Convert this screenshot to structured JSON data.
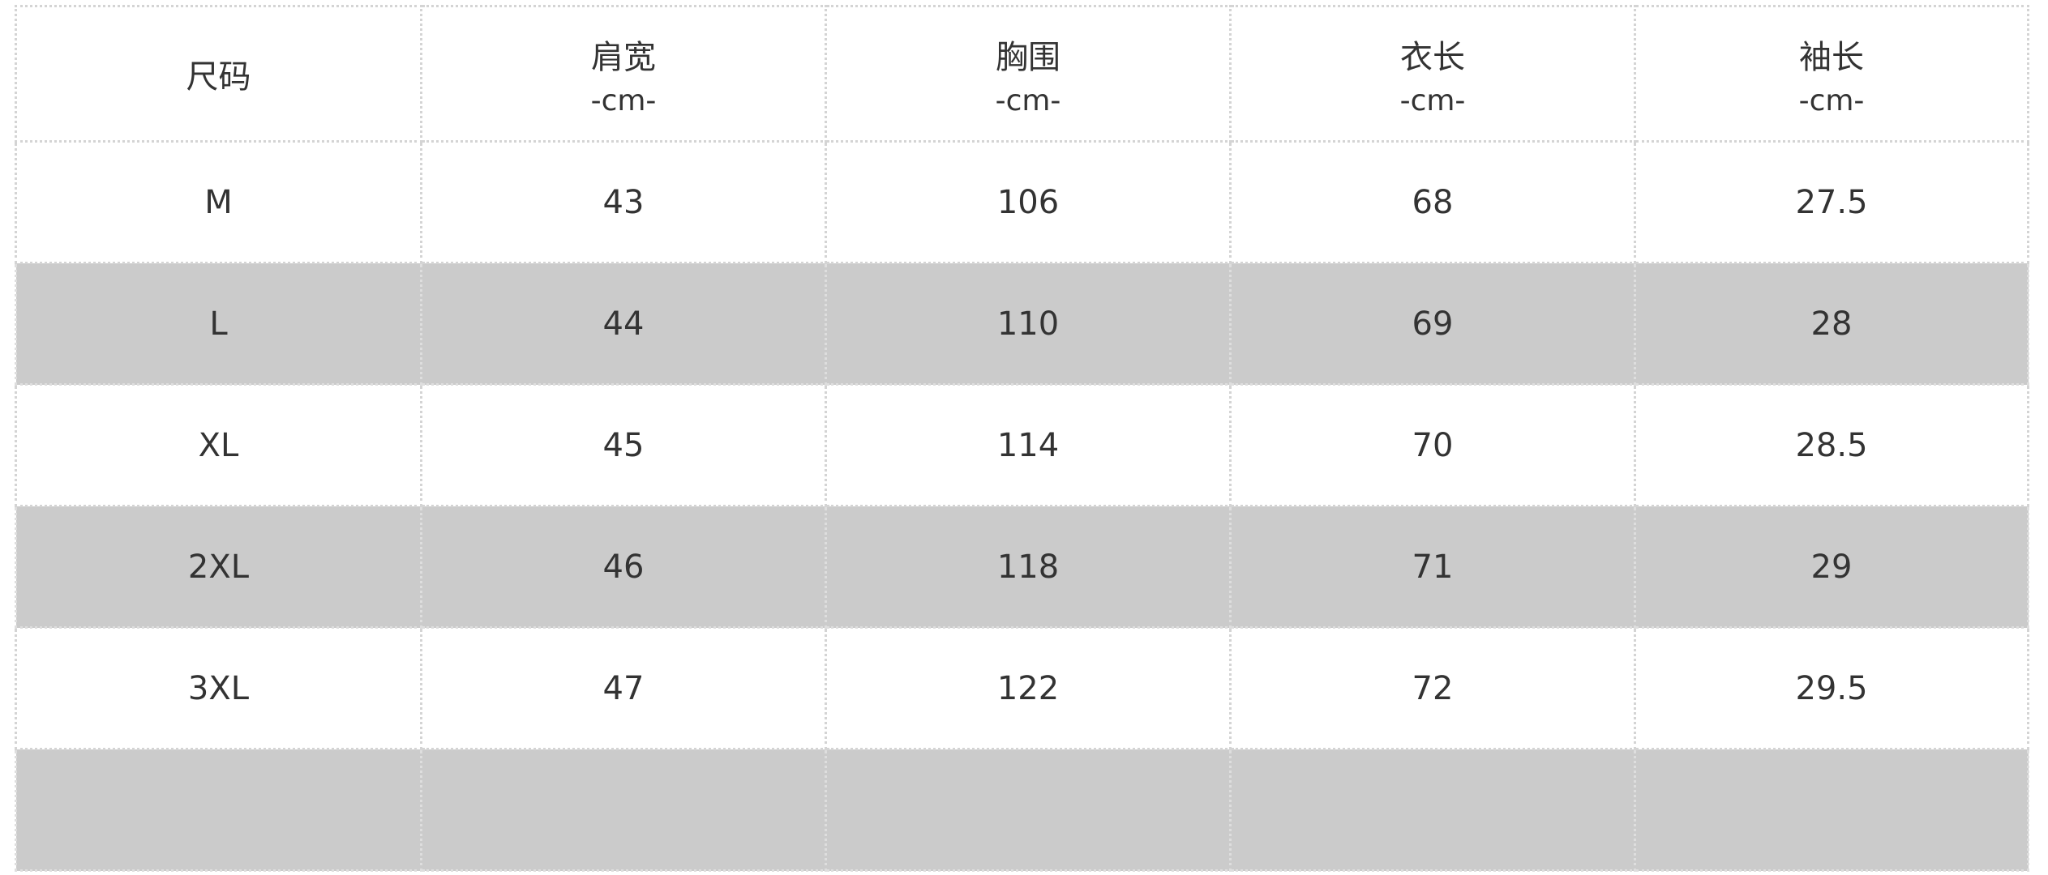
{
  "table": {
    "headers": [
      {
        "label": "尺码",
        "unit": ""
      },
      {
        "label": "肩宽",
        "unit": "-cm-"
      },
      {
        "label": "胸围",
        "unit": "-cm-"
      },
      {
        "label": "衣长",
        "unit": "-cm-"
      },
      {
        "label": "袖长",
        "unit": "-cm-"
      }
    ],
    "rows": [
      [
        "M",
        "43",
        "106",
        "68",
        "27.5"
      ],
      [
        "L",
        "44",
        "110",
        "69",
        "28"
      ],
      [
        "XL",
        "45",
        "114",
        "70",
        "28.5"
      ],
      [
        "2XL",
        "46",
        "118",
        "71",
        "29"
      ],
      [
        "3XL",
        "47",
        "122",
        "72",
        "29.5"
      ],
      [
        "",
        "",
        "",
        "",
        ""
      ]
    ],
    "colors": {
      "stripe": "#cbcbcb",
      "text": "#333333",
      "border": "#d4d4d4"
    }
  }
}
